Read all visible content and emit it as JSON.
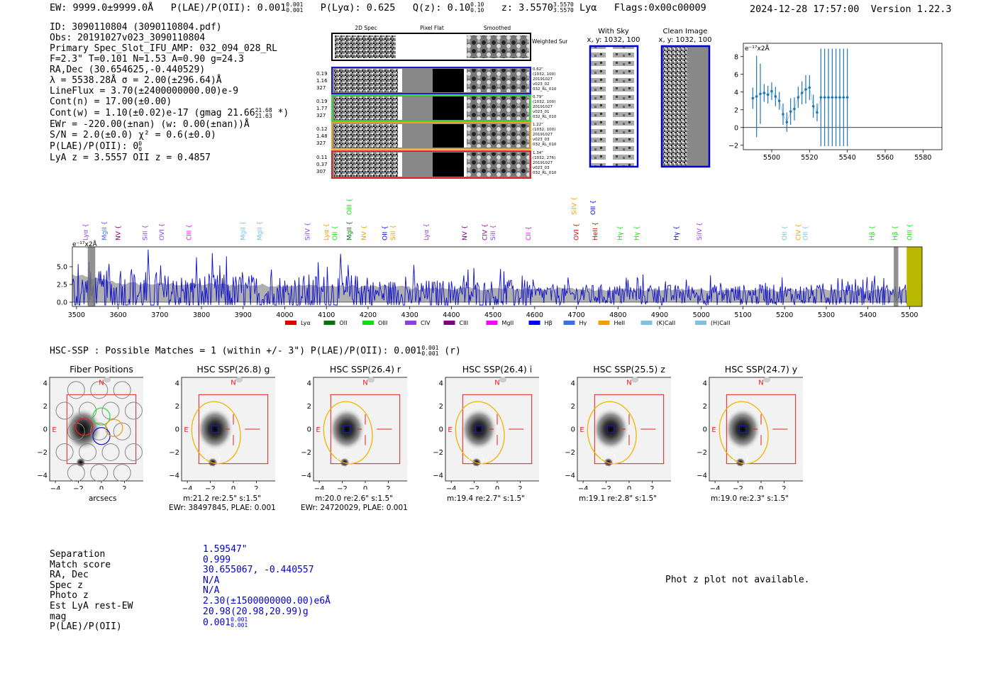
{
  "header": {
    "ew": "EW: 9999.0±9999.0Å",
    "plae_label": "P(LAE)/P(OII):",
    "plae_val": "0.001",
    "plae_hi": "0.001",
    "plae_lo": "0.001",
    "plya": "P(Lyα): 0.625",
    "qz_label": "Q(z): 0.10",
    "qz_hi": "0.10",
    "qz_lo": "0.10",
    "z_label": "z: 3.5570",
    "z_hi": "3.5570",
    "z_lo": "3.5570",
    "z_line": "Lyα",
    "flags": "Flags:0x00c00009",
    "timestamp": "2024-12-28 17:57:00",
    "version": "Version 1.22.3"
  },
  "info": {
    "lines": [
      "ID: 3090110804 (3090110804.pdf)",
      "Obs: 20191027v023_3090110804",
      "Primary Spec_Slot_IFU_AMP: 032_094_028_RL",
      "F=2.3\"  T=0.101  N=1.53  A=0.90  g=24.3",
      "RA,Dec (30.654625,-0.440529)",
      "λ = 5538.28Å  σ = 2.00(±296.64)Å",
      "LineFlux = 3.70(±2400000000.00)e-9",
      "Cont(n) = 17.00(±0.00)",
      "Cont(w) = 1.10(±0.02)e-17 (gmag 21.66",
      "EWr = -220.00(±nan) (w: 0.00(±nan))Å",
      "S/N = 2.0(±0.0)  χ² = 0.6(±0.0)",
      "P(LAE)/P(OII): 0",
      "LyA z = 3.5557  OII z = 0.4857"
    ],
    "gmag_hi": "21.68",
    "gmag_lo": "21.63",
    "gmag_tail": " *)",
    "plae_hi": "0",
    "plae_lo": "0"
  },
  "cutouts": {
    "col_titles": [
      "2D Spec",
      "Pixel Flat",
      "Smoothed"
    ],
    "weighted_sum": "Weighted Sum",
    "rows": [
      {
        "left": [
          "0.19",
          "1.16",
          "327"
        ],
        "right": [
          "0.62\"",
          "(1032, 100)",
          "20191027",
          "v023_02",
          "032_RL_010"
        ],
        "color": "#1a1acc"
      },
      {
        "left": [
          "0.19",
          "1.77",
          "327"
        ],
        "right": [
          "0.79\"",
          "(1032, 100)",
          "20191027",
          "v023_01",
          "032_RL_010"
        ],
        "color": "#33dd33"
      },
      {
        "left": [
          "0.12",
          "1.48",
          "327"
        ],
        "right": [
          "1.22\"",
          "(1032, 100)",
          "20191027",
          "v023_03",
          "032_RL_010"
        ],
        "color": "#f0a020"
      },
      {
        "left": [
          "0.11",
          "0.37",
          "307"
        ],
        "right": [
          "1.34\"",
          "(1032, 276)",
          "20191027",
          "v023_03",
          "032_RL_010"
        ],
        "color": "#e02020"
      }
    ],
    "with_sky_title": "With Sky",
    "with_sky_coords": "x, y: 1032, 100",
    "clean_title": "Clean Image",
    "clean_coords": "x, y: 1032, 100"
  },
  "chart_data": [
    {
      "type": "scatter",
      "title": "",
      "ylabel_note": "e⁻¹⁷x2Å",
      "xlim": [
        5485,
        5590
      ],
      "ylim": [
        -2.5,
        9.5
      ],
      "xticks": [
        5500,
        5520,
        5540,
        5560,
        5580
      ],
      "yticks": [
        -2,
        0,
        2,
        4,
        6,
        8
      ],
      "color": "#1f77b4",
      "x": [
        5490,
        5492,
        5494,
        5496,
        5498,
        5500,
        5502,
        5504,
        5506,
        5508,
        5510,
        5512,
        5514,
        5516,
        5518,
        5520,
        5522,
        5524,
        5526,
        5528,
        5530,
        5532,
        5534,
        5536,
        5538,
        5540
      ],
      "y": [
        3.3,
        3.5,
        3.8,
        3.9,
        3.7,
        4.1,
        3.5,
        3.0,
        1.5,
        0.6,
        1.8,
        2.1,
        3.4,
        3.9,
        4.3,
        4.5,
        2.4,
        1.7,
        3.4,
        3.4,
        3.4,
        3.4,
        3.4,
        3.4,
        3.4,
        3.4
      ],
      "yerr": [
        1.2,
        4.6,
        3.4,
        1.0,
        1.0,
        1.0,
        1.1,
        1.0,
        1.2,
        1.1,
        1.5,
        1.3,
        1.2,
        1.3,
        1.6,
        1.4,
        1.3,
        1.0,
        5.5,
        5.5,
        5.5,
        5.5,
        5.5,
        5.5,
        5.5,
        5.5
      ]
    },
    {
      "type": "line",
      "title": "",
      "ylabel_note": "e⁻¹⁷x2Å",
      "xlim": [
        3490,
        5530
      ],
      "ylim": [
        -0.6,
        7.8
      ],
      "xticks": [
        3500,
        3600,
        3700,
        3800,
        3900,
        4000,
        4100,
        4200,
        4300,
        4400,
        4500,
        4600,
        4700,
        4800,
        4900,
        5000,
        5100,
        5200,
        5300,
        5400,
        5500
      ],
      "yticks": [
        0.0,
        2.5,
        5.0
      ],
      "series_color": "#1010cc",
      "noise_color": "#b0b0b0",
      "zero_line": 0.0,
      "legend": [
        {
          "label": "Lyα",
          "color": "#e00000"
        },
        {
          "label": "OII",
          "color": "#107010"
        },
        {
          "label": "OIII",
          "color": "#10e010"
        },
        {
          "label": "CIV",
          "color": "#9040e0"
        },
        {
          "label": "CIII",
          "color": "#800080"
        },
        {
          "label": "MgII",
          "color": "#ff00ff"
        },
        {
          "label": "Hβ",
          "color": "#0000ff"
        },
        {
          "label": "Hγ",
          "color": "#4070e0"
        },
        {
          "label": "HeII",
          "color": "#f0a000"
        },
        {
          "label": "(K)CaII",
          "color": "#80c0e0"
        },
        {
          "label": "(H)CaII",
          "color": "#80c0e0"
        }
      ],
      "line_marks": [
        {
          "label": "Lyα",
          "x": 3527,
          "color": "#9040e0",
          "row": 1
        },
        {
          "label": "MgII",
          "x": 3572,
          "color": "#4070e0",
          "row": 1
        },
        {
          "label": "NV",
          "x": 3605,
          "color": "#800080",
          "row": 1
        },
        {
          "label": "SiII",
          "x": 3670,
          "color": "#9040e0",
          "row": 1
        },
        {
          "label": "OVI",
          "x": 3710,
          "color": "#9040e0",
          "row": 1
        },
        {
          "label": "CIII",
          "x": 3775,
          "color": "#ff00ff",
          "row": 1
        },
        {
          "label": "MgII",
          "x": 3905,
          "color": "#80c0e0",
          "row": 1
        },
        {
          "label": "MgII",
          "x": 3945,
          "color": "#80c0e0",
          "row": 1
        },
        {
          "label": "SiIV",
          "x": 4060,
          "color": "#9040e0",
          "row": 1
        },
        {
          "label": "Lyα",
          "x": 4105,
          "color": "#f0a000",
          "row": 1
        },
        {
          "label": "OII",
          "x": 4125,
          "color": "#10e010",
          "row": 1
        },
        {
          "label": "MgII",
          "x": 4160,
          "color": "#107010",
          "row": 1
        },
        {
          "label": "OIII",
          "x": 4160,
          "color": "#10e010",
          "row": 0
        },
        {
          "label": "NV",
          "x": 4195,
          "color": "#f0a000",
          "row": 1
        },
        {
          "label": "OII",
          "x": 4245,
          "color": "#0000ff",
          "row": 1
        },
        {
          "label": "SiII",
          "x": 4265,
          "color": "#f0a000",
          "row": 1
        },
        {
          "label": "Lyα",
          "x": 4345,
          "color": "#9040e0",
          "row": 1
        },
        {
          "label": "NV",
          "x": 4437,
          "color": "#800080",
          "row": 1
        },
        {
          "label": "CIV",
          "x": 4485,
          "color": "#800080",
          "row": 1
        },
        {
          "label": "SiII",
          "x": 4505,
          "color": "#9040e0",
          "row": 1
        },
        {
          "label": "CII",
          "x": 4590,
          "color": "#ff00ff",
          "row": 1
        },
        {
          "label": "OVI",
          "x": 4705,
          "color": "#e00000",
          "row": 1
        },
        {
          "label": "SiIV",
          "x": 4700,
          "color": "#f0a000",
          "row": 0
        },
        {
          "label": "HeII",
          "x": 4750,
          "color": "#e00000",
          "row": 1
        },
        {
          "label": "OII",
          "x": 4745,
          "color": "#0000ff",
          "row": 0
        },
        {
          "label": "Hγ",
          "x": 4810,
          "color": "#10e010",
          "row": 1
        },
        {
          "label": "Hγ",
          "x": 4850,
          "color": "#10e010",
          "row": 1
        },
        {
          "label": "Hγ",
          "x": 4945,
          "color": "#0000ff",
          "row": 1
        },
        {
          "label": "SiIV",
          "x": 5000,
          "color": "#9040e0",
          "row": 1
        },
        {
          "label": "OII",
          "x": 5205,
          "color": "#80c0e0",
          "row": 1
        },
        {
          "label": "CIV",
          "x": 5238,
          "color": "#f0a000",
          "row": 1
        },
        {
          "label": "OII",
          "x": 5255,
          "color": "#80c0e0",
          "row": 1
        },
        {
          "label": "Hβ",
          "x": 5415,
          "color": "#10e010",
          "row": 1
        },
        {
          "label": "Hβ",
          "x": 5470,
          "color": "#10e010",
          "row": 1
        },
        {
          "label": "OIII",
          "x": 5505,
          "color": "#10e010",
          "row": 1
        }
      ]
    }
  ],
  "hsc": {
    "title": "HSC-SSP : Possible Matches = 1 (within +/- 3\")  P(LAE)/P(OII): 0.001",
    "title_hi": "0.001",
    "title_lo": "0.001",
    "title_tail": " (r)",
    "panels": [
      {
        "title": "Fiber Positions",
        "line1": "arcsecs",
        "line2": ""
      },
      {
        "title": "HSC SSP(26.8) g",
        "line1": "m:21.2  re:2.5\"  s:1.5\"",
        "line2": "EWr: 38497845, PLAE: 0.001"
      },
      {
        "title": "HSC SSP(26.4) r",
        "line1": "m:20.0  re:2.6\"  s:1.5\"",
        "line2": "EWr: 24720029, PLAE: 0.001"
      },
      {
        "title": "HSC SSP(26.4) i",
        "line1": "m:19.4  re:2.7\"  s:1.5\"",
        "line2": ""
      },
      {
        "title": "HSC SSP(25.5) z",
        "line1": "m:19.1  re:2.8\"  s:1.5\"",
        "line2": ""
      },
      {
        "title": "HSC SSP(24.7) y",
        "line1": "m:19.0  re:2.3\"  s:1.5\"",
        "line2": ""
      }
    ],
    "axis_ticks": [
      "−4",
      "−2",
      "0",
      "2",
      "4"
    ],
    "n_label": "N",
    "e_label": "E"
  },
  "match": {
    "labels": [
      "Separation",
      "Match score",
      "RA, Dec",
      "Spec z",
      "Photo z",
      "Est LyA rest-EW",
      "mag",
      "P(LAE)/P(OII)"
    ],
    "values": [
      "1.59547\"",
      "0.999",
      "30.655067, -0.440557",
      "N/A",
      "N/A",
      "2.30(±1500000000.00)e6Å",
      "20.98(20.98,20.99)g",
      "0.001"
    ],
    "plae_hi": "0.001",
    "plae_lo": "0.001",
    "photz_msg": "Phot z plot not available."
  }
}
